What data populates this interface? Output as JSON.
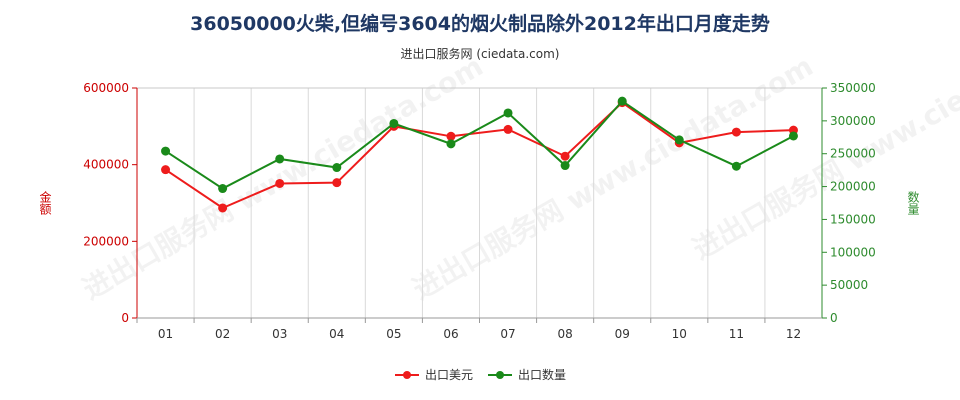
{
  "title": "36050000火柴,但编号3604的烟火制品除外2012年出口月度走势",
  "subtitle": "进出口服务网 (ciedata.com)",
  "watermark": "进出口服务网 www.ciedata.com",
  "colors": {
    "usd": "#ee1c1c",
    "qty": "#1a8a1a",
    "left_axis": "#cc0000",
    "right_axis": "#2e8b2e",
    "title": "#1f3864",
    "grid": "#d9d9d9"
  },
  "chart_data": {
    "type": "line",
    "categories": [
      "01",
      "02",
      "03",
      "04",
      "05",
      "06",
      "07",
      "08",
      "09",
      "10",
      "11",
      "12"
    ],
    "series": [
      {
        "name": "出口美元",
        "axis": "left",
        "color": "#ee1c1c",
        "values": [
          387000,
          287000,
          351000,
          353000,
          500000,
          474000,
          492000,
          422000,
          562000,
          457000,
          485000,
          490000
        ]
      },
      {
        "name": "出口数量",
        "axis": "right",
        "color": "#1a8a1a",
        "values": [
          254000,
          197000,
          242000,
          229000,
          296000,
          265000,
          312000,
          232000,
          330000,
          271000,
          231000,
          277000
        ]
      }
    ],
    "ylabel_left": "金额",
    "ylabel_right": "数量",
    "ylim_left": [
      0,
      600000
    ],
    "ylim_right": [
      0,
      350000
    ],
    "yticks_left": [
      "0",
      "200000",
      "400000",
      "600000"
    ],
    "yticks_right": [
      "0",
      "50000",
      "100000",
      "150000",
      "200000",
      "250000",
      "300000",
      "350000"
    ],
    "grid": "vertical",
    "legend_position": "bottom-center"
  }
}
